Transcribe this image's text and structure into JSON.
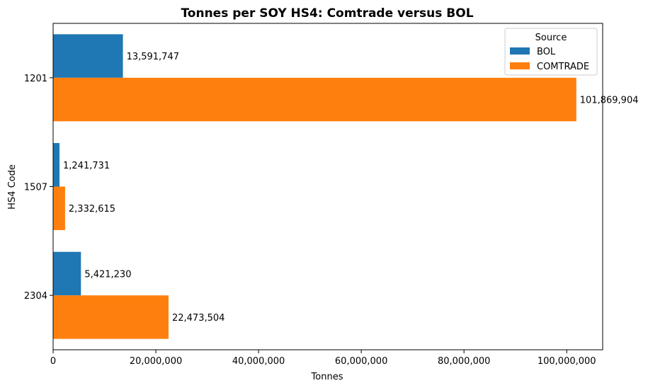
{
  "chart_data": {
    "type": "bar",
    "orientation": "horizontal",
    "title": "Tonnes per SOY HS4: Comtrade versus BOL",
    "xlabel": "Tonnes",
    "ylabel": "HS4 Code",
    "categories": [
      "1201",
      "1507",
      "2304"
    ],
    "series": [
      {
        "name": "BOL",
        "color": "#1f77b4",
        "values": [
          13591747,
          1241731,
          5421230
        ],
        "labels": [
          "13,591,747",
          "1,241,731",
          "5,421,230"
        ]
      },
      {
        "name": "COMTRADE",
        "color": "#ff7f0e",
        "values": [
          101869904,
          2332615,
          22473504
        ],
        "labels": [
          "101,869,904",
          "2,332,615",
          "22,473,504"
        ]
      }
    ],
    "xlim": [
      0,
      107000000
    ],
    "xticks": [
      0,
      20000000,
      40000000,
      60000000,
      80000000,
      100000000
    ],
    "xtick_labels": [
      "0",
      "20,000,000",
      "40,000,000",
      "60,000,000",
      "80,000,000",
      "100,000,000"
    ],
    "legend": {
      "title": "Source",
      "placement": "top-right",
      "entries": [
        "BOL",
        "COMTRADE"
      ]
    },
    "grid": false
  }
}
